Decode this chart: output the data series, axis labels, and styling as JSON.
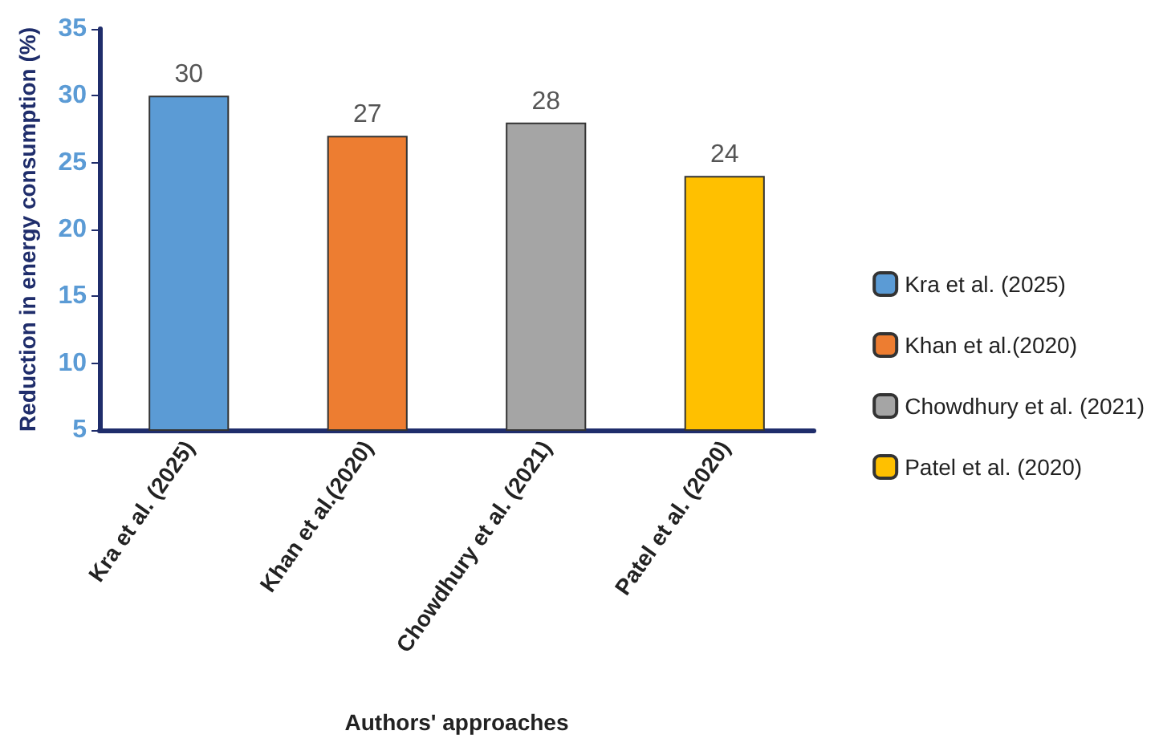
{
  "chart_data": {
    "type": "bar",
    "xlabel": "Authors' approaches",
    "ylabel": "Reduction in energy consumption (%)",
    "categories": [
      "Kra et al. (2025)",
      "Khan et al.(2020)",
      "Chowdhury et al. (2021)",
      "Patel et al. (2020)"
    ],
    "series": [
      {
        "name": "Kra et al. (2025)",
        "color": "#5b9bd5",
        "values": [
          30,
          null,
          null,
          null
        ]
      },
      {
        "name": "Khan et al.(2020)",
        "color": "#ed7d31",
        "values": [
          null,
          27,
          null,
          null
        ]
      },
      {
        "name": "Chowdhury et al. (2021)",
        "color": "#a5a5a5",
        "values": [
          null,
          null,
          28,
          null
        ]
      },
      {
        "name": "Patel et al. (2020)",
        "color": "#ffc000",
        "values": [
          null,
          null,
          null,
          24
        ]
      }
    ],
    "ylim": [
      5,
      35
    ],
    "yticks": [
      5,
      10,
      15,
      20,
      25,
      30,
      35
    ],
    "grid": false,
    "legend": "right",
    "data_labels": true
  }
}
